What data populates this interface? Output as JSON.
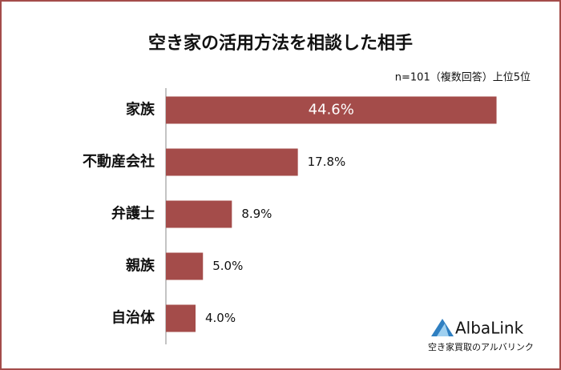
{
  "chart_data": {
    "type": "barh",
    "title": "空き家の活用方法を相談した相手",
    "subtitle": "n=101（複数回答）上位5位",
    "categories": [
      "家族",
      "不動産会社",
      "弁護士",
      "親族",
      "自治体"
    ],
    "values": [
      44.6,
      17.8,
      8.9,
      5.0,
      4.0
    ],
    "value_labels": [
      "44.6%",
      "17.8%",
      "8.9%",
      "5.0%",
      "4.0%"
    ],
    "color": "#a44c4a",
    "xlim": [
      0,
      48
    ]
  },
  "branding": {
    "name": "AlbaLink",
    "tagline": "空き家買取のアルバリンク"
  }
}
